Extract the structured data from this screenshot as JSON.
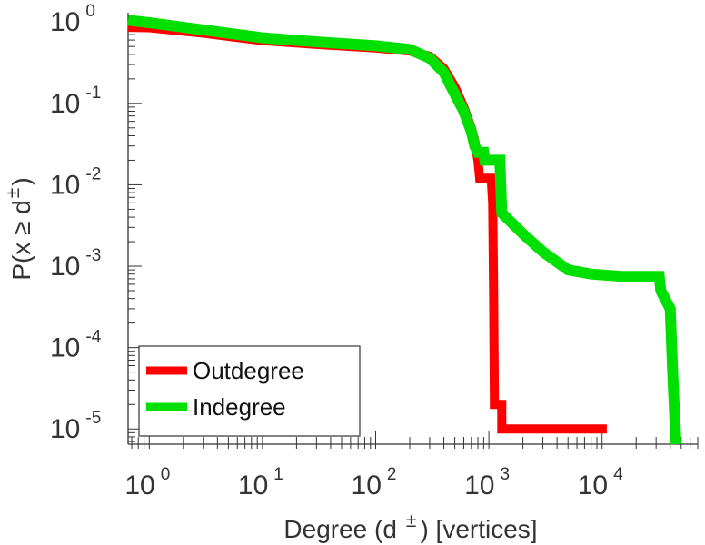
{
  "chart_data": {
    "type": "line",
    "scale": {
      "x": "log",
      "y": "log"
    },
    "xlim": [
      0.65,
      70000
    ],
    "ylim": [
      6.5e-06,
      1.3
    ],
    "xlabel": "Degree (d ± ) [vertices]",
    "ylabel": "P(x ≥ d ± )",
    "xlabel_parts": {
      "pre": "Degree (d",
      "sup": "±",
      "post": ") [vertices]"
    },
    "ylabel_parts": {
      "pre": "P(x ≥ d",
      "sup": "±",
      "post": ")"
    },
    "x_ticks": [
      {
        "value": 1,
        "base": "10",
        "exp": "0"
      },
      {
        "value": 10,
        "base": "10",
        "exp": "1"
      },
      {
        "value": 100,
        "base": "10",
        "exp": "2"
      },
      {
        "value": 1000,
        "base": "10",
        "exp": "3"
      },
      {
        "value": 10000,
        "base": "10",
        "exp": "4"
      }
    ],
    "y_ticks": [
      {
        "value": 1,
        "base": "10",
        "exp": "0"
      },
      {
        "value": 0.1,
        "base": "10",
        "exp": "-1"
      },
      {
        "value": 0.01,
        "base": "10",
        "exp": "-2"
      },
      {
        "value": 0.001,
        "base": "10",
        "exp": "-3"
      },
      {
        "value": 0.0001,
        "base": "10",
        "exp": "-4"
      },
      {
        "value": 1e-05,
        "base": "10",
        "exp": "-5"
      }
    ],
    "legend": {
      "position": "bottom-left"
    },
    "series": [
      {
        "name": "Outdegree",
        "color": "#ff0000",
        "points": [
          [
            0.65,
            0.86
          ],
          [
            1,
            0.85
          ],
          [
            3,
            0.73
          ],
          [
            10,
            0.59
          ],
          [
            30,
            0.53
          ],
          [
            100,
            0.48
          ],
          [
            200,
            0.44
          ],
          [
            300,
            0.38
          ],
          [
            400,
            0.27
          ],
          [
            500,
            0.16
          ],
          [
            600,
            0.09
          ],
          [
            700,
            0.05
          ],
          [
            750,
            0.035
          ],
          [
            800,
            0.02
          ],
          [
            830,
            0.012
          ],
          [
            1050,
            0.012
          ],
          [
            1080,
            0.006
          ],
          [
            1100,
            0.0005
          ],
          [
            1120,
            2e-05
          ],
          [
            1300,
            2e-05
          ],
          [
            1300,
            1e-05
          ],
          [
            11000,
            1e-05
          ]
        ]
      },
      {
        "name": "Indegree",
        "color": "#00e000",
        "points": [
          [
            0.65,
            1.05
          ],
          [
            1,
            0.98
          ],
          [
            3,
            0.8
          ],
          [
            10,
            0.64
          ],
          [
            30,
            0.57
          ],
          [
            100,
            0.51
          ],
          [
            200,
            0.46
          ],
          [
            300,
            0.36
          ],
          [
            400,
            0.24
          ],
          [
            500,
            0.13
          ],
          [
            600,
            0.08
          ],
          [
            700,
            0.045
          ],
          [
            750,
            0.03
          ],
          [
            800,
            0.025
          ],
          [
            900,
            0.025
          ],
          [
            920,
            0.02
          ],
          [
            1250,
            0.02
          ],
          [
            1300,
            0.0045
          ],
          [
            2000,
            0.0025
          ],
          [
            3000,
            0.0015
          ],
          [
            5000,
            0.0009
          ],
          [
            8000,
            0.0008
          ],
          [
            15000,
            0.00075
          ],
          [
            25000,
            0.00075
          ],
          [
            32000,
            0.00075
          ],
          [
            33000,
            0.0005
          ],
          [
            40000,
            0.0003
          ],
          [
            42000,
            5e-05
          ],
          [
            45000,
            6.5e-06
          ]
        ]
      }
    ]
  }
}
